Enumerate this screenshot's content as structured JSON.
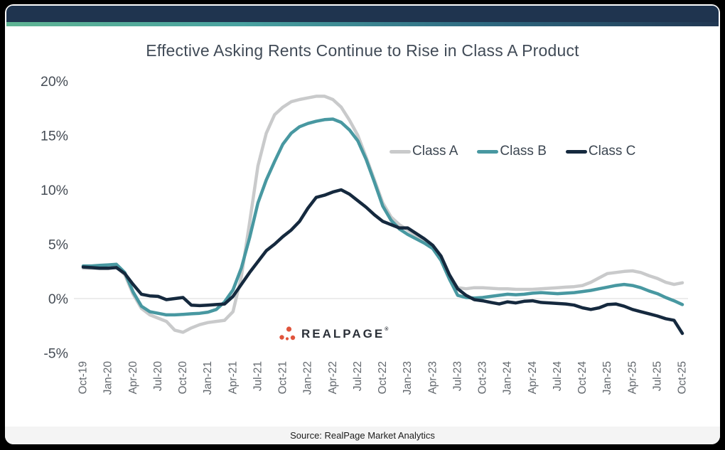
{
  "page": {
    "title": "Effective Asking Rents Continue to Rise in Class A Product",
    "source": "Source: RealPage Market Analytics",
    "watermark": {
      "brand": "REALPAGE",
      "trademark": "®"
    }
  },
  "colors": {
    "background": "#000000",
    "card": "#ffffff",
    "header_bar": "#1f344f",
    "stripe_gradient": [
      "#5fb493",
      "#49a2a0",
      "#2f6b82",
      "#213752"
    ],
    "class_a": "#c9cacb",
    "class_b": "#4898a1",
    "class_c": "#15293e",
    "gridline": "#d9d9d9",
    "y_axis_text": "#454c55",
    "x_axis_text": "#63686e",
    "title_text": "#414b57",
    "logo_dots": "#e0543c",
    "footer_bg": "#f4f4f4"
  },
  "legend": [
    {
      "label": "Class A",
      "color": "#c9cacb"
    },
    {
      "label": "Class B",
      "color": "#4898a1"
    },
    {
      "label": "Class C",
      "color": "#15293e"
    }
  ],
  "chart_data": {
    "type": "line",
    "title": "Effective Asking Rents Continue to Rise in Class A Product",
    "x_start": "Oct-19",
    "x_freq": "monthly",
    "x_tick_labels": [
      "Oct-19",
      "Jan-20",
      "Apr-20",
      "Jul-20",
      "Oct-20",
      "Jan-21",
      "Apr-21",
      "Jul-21",
      "Oct-21",
      "Jan-22",
      "Apr-22",
      "Jul-22",
      "Oct-22",
      "Jan-23",
      "Apr-23",
      "Jul-23",
      "Oct-23",
      "Jan-24",
      "Apr-24",
      "Jul-24",
      "Oct-24",
      "Jan-25",
      "Apr-25",
      "Jul-25",
      "Oct-25"
    ],
    "y_tick_labels": [
      "20%",
      "15%",
      "10%",
      "5%",
      "0%",
      "-5%"
    ],
    "y_tick_values": [
      20,
      15,
      10,
      5,
      0,
      -5
    ],
    "ylim": [
      -5.5,
      21
    ],
    "ylabel": "",
    "xlabel": "",
    "grid": "horizontal line at 0% only",
    "legend_position": "inside-upper-right",
    "series": [
      {
        "name": "Class A",
        "color": "#c9cacb",
        "values": [
          2.8,
          2.8,
          2.75,
          2.75,
          2.9,
          2.2,
          0.4,
          -0.9,
          -1.5,
          -1.8,
          -2.1,
          -2.9,
          -3.1,
          -2.7,
          -2.4,
          -2.2,
          -2.1,
          -2.0,
          -1.2,
          2.0,
          7.0,
          12.2,
          15.2,
          16.9,
          17.6,
          18.1,
          18.3,
          18.45,
          18.6,
          18.6,
          18.3,
          17.6,
          16.4,
          15.0,
          13.0,
          10.9,
          8.8,
          7.5,
          6.8,
          6.3,
          5.8,
          5.3,
          4.7,
          3.7,
          2.0,
          1.0,
          0.9,
          1.0,
          1.0,
          0.95,
          0.9,
          0.9,
          0.85,
          0.85,
          0.85,
          0.9,
          0.95,
          1.0,
          1.05,
          1.1,
          1.2,
          1.5,
          1.9,
          2.3,
          2.4,
          2.5,
          2.55,
          2.4,
          2.1,
          1.85,
          1.5,
          1.3,
          1.45
        ]
      },
      {
        "name": "Class B",
        "color": "#4898a1",
        "values": [
          3.0,
          3.0,
          3.05,
          3.1,
          3.15,
          2.4,
          0.6,
          -0.7,
          -1.2,
          -1.35,
          -1.5,
          -1.5,
          -1.45,
          -1.4,
          -1.35,
          -1.25,
          -1.0,
          -0.3,
          0.8,
          2.8,
          5.6,
          8.8,
          10.9,
          12.6,
          14.2,
          15.2,
          15.8,
          16.1,
          16.3,
          16.45,
          16.5,
          16.2,
          15.5,
          14.5,
          12.8,
          10.7,
          8.5,
          7.2,
          6.4,
          5.9,
          5.5,
          5.1,
          4.6,
          3.5,
          1.8,
          0.3,
          0.1,
          0.05,
          0.1,
          0.2,
          0.3,
          0.4,
          0.35,
          0.4,
          0.5,
          0.55,
          0.5,
          0.45,
          0.5,
          0.55,
          0.65,
          0.75,
          0.9,
          1.05,
          1.2,
          1.3,
          1.2,
          1.0,
          0.7,
          0.45,
          0.1,
          -0.2,
          -0.55
        ]
      },
      {
        "name": "Class C",
        "color": "#15293e",
        "values": [
          2.9,
          2.85,
          2.8,
          2.8,
          2.85,
          2.3,
          1.3,
          0.4,
          0.25,
          0.2,
          -0.1,
          0.0,
          0.1,
          -0.6,
          -0.65,
          -0.6,
          -0.55,
          -0.5,
          0.2,
          1.3,
          2.4,
          3.4,
          4.4,
          5.0,
          5.7,
          6.3,
          7.1,
          8.3,
          9.3,
          9.5,
          9.8,
          10.0,
          9.6,
          9.0,
          8.4,
          7.7,
          7.1,
          6.8,
          6.5,
          6.5,
          6.0,
          5.5,
          4.9,
          3.9,
          2.2,
          0.9,
          0.3,
          -0.1,
          -0.2,
          -0.35,
          -0.5,
          -0.3,
          -0.4,
          -0.25,
          -0.2,
          -0.35,
          -0.4,
          -0.45,
          -0.5,
          -0.6,
          -0.85,
          -1.0,
          -0.85,
          -0.55,
          -0.5,
          -0.7,
          -1.0,
          -1.2,
          -1.4,
          -1.6,
          -1.85,
          -2.0,
          -3.2
        ]
      }
    ]
  }
}
